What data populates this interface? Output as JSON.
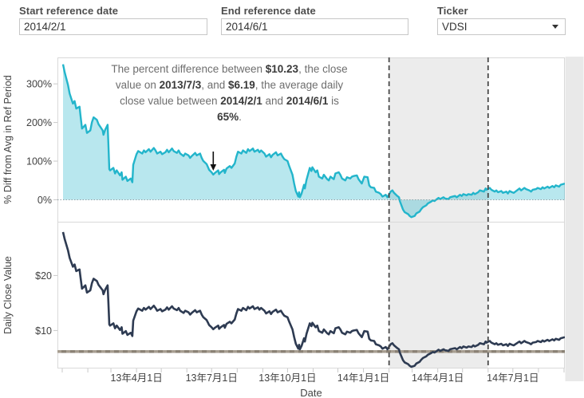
{
  "header": {
    "fields": [
      {
        "label": "Start reference date",
        "value": "2014/2/1",
        "type": "text"
      },
      {
        "label": "End reference date",
        "value": "2014/6/1",
        "type": "text"
      },
      {
        "label": "Ticker",
        "value": "VDSI",
        "type": "dropdown"
      }
    ]
  },
  "annotation": {
    "segments": [
      {
        "text": "The percent difference between ",
        "bold": false
      },
      {
        "text": "$10.23",
        "bold": true
      },
      {
        "text": ", the close value on ",
        "bold": false
      },
      {
        "text": "2013/7/3",
        "bold": true
      },
      {
        "text": ", and ",
        "bold": false
      },
      {
        "text": "$6.19",
        "bold": true
      },
      {
        "text": ", the average daily close value between ",
        "bold": false
      },
      {
        "text": "2014/2/1",
        "bold": true
      },
      {
        "text": " and ",
        "bold": false
      },
      {
        "text": "2014/6/1",
        "bold": true
      },
      {
        "text": " is ",
        "bold": false
      },
      {
        "text": "65%",
        "bold": true
      },
      {
        "text": ".",
        "bold": false
      }
    ],
    "arrow_date": "2013-07-03"
  },
  "chart_data": {
    "type": "line",
    "xlabel": "Date",
    "x_range": [
      "2013-01-01",
      "2014-09-06"
    ],
    "minor_ticks": "monthly",
    "x_tick_labels": [
      {
        "date": "2013-04-01",
        "label": "13年4月1日"
      },
      {
        "date": "2013-07-01",
        "label": "13年7月1日"
      },
      {
        "date": "2013-10-01",
        "label": "13年10月1日"
      },
      {
        "date": "2014-01-01",
        "label": "14年1月1日"
      },
      {
        "date": "2014-04-01",
        "label": "14年4月1日"
      },
      {
        "date": "2014-07-01",
        "label": "14年7月1日"
      }
    ],
    "reference_band": {
      "start": "2014-02-01",
      "end": "2014-06-01",
      "color": "#ececec"
    },
    "dashed_line_color": "#4a4a4a",
    "linked_charts": [
      {
        "id": "pct_diff",
        "ylabel": "% Diff from Avg in Ref Period",
        "yticks": [
          {
            "value": 0,
            "label": "0%"
          },
          {
            "value": 100,
            "label": "100%"
          },
          {
            "value": 200,
            "label": "200%"
          },
          {
            "value": 300,
            "label": "300%"
          }
        ],
        "ylim": [
          -60,
          370
        ],
        "zero_line": true,
        "ref_avg": 6.19,
        "line_color": "#23b5cb",
        "fill_color": "rgba(35,181,203,0.32)",
        "derived": "pct = (close / ref_avg - 1) * 100"
      },
      {
        "id": "daily_close",
        "ylabel": "Daily Close Value",
        "yticks": [
          {
            "value": 10,
            "label": "$10"
          },
          {
            "value": 20,
            "label": "$20"
          }
        ],
        "ylim": [
          2.8,
          29
        ],
        "line_color": "#2e3b52",
        "reference_line_value": 6.19,
        "reference_line_color": "#8b8275"
      }
    ],
    "series": {
      "name": "VDSI daily close",
      "points": [
        [
          "2013-01-02",
          27.9
        ],
        [
          "2013-01-04",
          26.6
        ],
        [
          "2013-01-08",
          24.6
        ],
        [
          "2013-01-10",
          23.2
        ],
        [
          "2013-01-14",
          21.6
        ],
        [
          "2013-01-16",
          22.0
        ],
        [
          "2013-01-18",
          20.8
        ],
        [
          "2013-01-22",
          21.1
        ],
        [
          "2013-01-23",
          19.8
        ],
        [
          "2013-01-25",
          17.6
        ],
        [
          "2013-01-29",
          18.2
        ],
        [
          "2013-01-31",
          16.9
        ],
        [
          "2013-02-04",
          17.3
        ],
        [
          "2013-02-06",
          18.6
        ],
        [
          "2013-02-08",
          19.4
        ],
        [
          "2013-02-12",
          19.0
        ],
        [
          "2013-02-14",
          18.3
        ],
        [
          "2013-02-19",
          17.3
        ],
        [
          "2013-02-20",
          16.6
        ],
        [
          "2013-02-22",
          17.4
        ],
        [
          "2013-02-25",
          18.2
        ],
        [
          "2013-02-26",
          15.0
        ],
        [
          "2013-02-27",
          11.1
        ],
        [
          "2013-02-28",
          10.9
        ],
        [
          "2013-03-04",
          11.3
        ],
        [
          "2013-03-06",
          10.4
        ],
        [
          "2013-03-08",
          10.9
        ],
        [
          "2013-03-12",
          10.1
        ],
        [
          "2013-03-14",
          10.6
        ],
        [
          "2013-03-15",
          9.4
        ],
        [
          "2013-03-19",
          9.9
        ],
        [
          "2013-03-21",
          9.2
        ],
        [
          "2013-03-25",
          9.6
        ],
        [
          "2013-03-27",
          9.0
        ],
        [
          "2013-03-28",
          11.8
        ],
        [
          "2013-04-01",
          13.5
        ],
        [
          "2013-04-03",
          14.0
        ],
        [
          "2013-04-08",
          13.6
        ],
        [
          "2013-04-10",
          14.1
        ],
        [
          "2013-04-12",
          13.8
        ],
        [
          "2013-04-16",
          14.3
        ],
        [
          "2013-04-18",
          13.9
        ],
        [
          "2013-04-22",
          14.5
        ],
        [
          "2013-04-24",
          14.1
        ],
        [
          "2013-04-26",
          13.6
        ],
        [
          "2013-04-30",
          13.9
        ],
        [
          "2013-05-02",
          13.5
        ],
        [
          "2013-05-06",
          13.8
        ],
        [
          "2013-05-08",
          14.2
        ],
        [
          "2013-05-10",
          13.8
        ],
        [
          "2013-05-14",
          14.4
        ],
        [
          "2013-05-16",
          14.0
        ],
        [
          "2013-05-20",
          13.7
        ],
        [
          "2013-05-22",
          14.1
        ],
        [
          "2013-05-24",
          13.6
        ],
        [
          "2013-05-28",
          13.2
        ],
        [
          "2013-05-30",
          13.6
        ],
        [
          "2013-06-03",
          13.3
        ],
        [
          "2013-06-05",
          12.9
        ],
        [
          "2013-06-07",
          13.2
        ],
        [
          "2013-06-11",
          13.7
        ],
        [
          "2013-06-13",
          13.3
        ],
        [
          "2013-06-17",
          13.6
        ],
        [
          "2013-06-19",
          12.9
        ],
        [
          "2013-06-21",
          12.4
        ],
        [
          "2013-06-25",
          11.9
        ],
        [
          "2013-06-27",
          11.3
        ],
        [
          "2013-06-28",
          11.0
        ],
        [
          "2013-07-01",
          10.6
        ],
        [
          "2013-07-03",
          10.23
        ],
        [
          "2013-07-05",
          10.5
        ],
        [
          "2013-07-09",
          10.9
        ],
        [
          "2013-07-10",
          10.3
        ],
        [
          "2013-07-12",
          10.6
        ],
        [
          "2013-07-16",
          11.0
        ],
        [
          "2013-07-17",
          10.5
        ],
        [
          "2013-07-19",
          11.2
        ],
        [
          "2013-07-23",
          11.6
        ],
        [
          "2013-07-25",
          11.3
        ],
        [
          "2013-07-29",
          12.0
        ],
        [
          "2013-07-31",
          13.1
        ],
        [
          "2013-08-02",
          13.9
        ],
        [
          "2013-08-06",
          13.6
        ],
        [
          "2013-08-08",
          14.1
        ],
        [
          "2013-08-12",
          13.7
        ],
        [
          "2013-08-14",
          14.3
        ],
        [
          "2013-08-16",
          14.0
        ],
        [
          "2013-08-20",
          14.4
        ],
        [
          "2013-08-22",
          13.9
        ],
        [
          "2013-08-26",
          14.2
        ],
        [
          "2013-08-28",
          13.8
        ],
        [
          "2013-08-30",
          14.1
        ],
        [
          "2013-09-03",
          13.6
        ],
        [
          "2013-09-05",
          13.1
        ],
        [
          "2013-09-09",
          13.5
        ],
        [
          "2013-09-11",
          13.0
        ],
        [
          "2013-09-13",
          13.4
        ],
        [
          "2013-09-17",
          13.8
        ],
        [
          "2013-09-19",
          13.3
        ],
        [
          "2013-09-23",
          13.6
        ],
        [
          "2013-09-25",
          13.1
        ],
        [
          "2013-09-27",
          12.7
        ],
        [
          "2013-10-01",
          12.4
        ],
        [
          "2013-10-03",
          11.6
        ],
        [
          "2013-10-07",
          10.2
        ],
        [
          "2013-10-09",
          8.8
        ],
        [
          "2013-10-11",
          7.6
        ],
        [
          "2013-10-14",
          6.7
        ],
        [
          "2013-10-15",
          7.4
        ],
        [
          "2013-10-16",
          6.6
        ],
        [
          "2013-10-18",
          7.2
        ],
        [
          "2013-10-21",
          8.6
        ],
        [
          "2013-10-22",
          8.0
        ],
        [
          "2013-10-24",
          9.4
        ],
        [
          "2013-10-28",
          11.3
        ],
        [
          "2013-10-30",
          10.8
        ],
        [
          "2013-10-31",
          11.4
        ],
        [
          "2013-11-04",
          10.6
        ],
        [
          "2013-11-06",
          10.9
        ],
        [
          "2013-11-08",
          9.9
        ],
        [
          "2013-11-12",
          9.6
        ],
        [
          "2013-11-14",
          10.2
        ],
        [
          "2013-11-18",
          9.5
        ],
        [
          "2013-11-20",
          9.3
        ],
        [
          "2013-11-22",
          9.9
        ],
        [
          "2013-11-26",
          9.5
        ],
        [
          "2013-11-28",
          10.4
        ],
        [
          "2013-12-02",
          10.6
        ],
        [
          "2013-12-04",
          10.2
        ],
        [
          "2013-12-06",
          9.6
        ],
        [
          "2013-12-10",
          9.3
        ],
        [
          "2013-12-12",
          9.8
        ],
        [
          "2013-12-16",
          9.6
        ],
        [
          "2013-12-18",
          9.9
        ],
        [
          "2013-12-20",
          10.0
        ],
        [
          "2013-12-24",
          10.1
        ],
        [
          "2013-12-26",
          9.5
        ],
        [
          "2013-12-30",
          8.8
        ],
        [
          "2014-01-02",
          9.9
        ],
        [
          "2014-01-06",
          9.8
        ],
        [
          "2014-01-08",
          8.5
        ],
        [
          "2014-01-10",
          8.2
        ],
        [
          "2014-01-14",
          8.1
        ],
        [
          "2014-01-16",
          7.5
        ],
        [
          "2014-01-20",
          7.3
        ],
        [
          "2014-01-22",
          7.1
        ],
        [
          "2014-01-24",
          6.7
        ],
        [
          "2014-01-28",
          7.0
        ],
        [
          "2014-01-30",
          6.6
        ],
        [
          "2014-02-03",
          7.5
        ],
        [
          "2014-02-05",
          7.7
        ],
        [
          "2014-02-07",
          7.3
        ],
        [
          "2014-02-11",
          6.8
        ],
        [
          "2014-02-13",
          6.6
        ],
        [
          "2014-02-14",
          6.0
        ],
        [
          "2014-02-18",
          4.6
        ],
        [
          "2014-02-20",
          4.2
        ],
        [
          "2014-02-24",
          3.9
        ],
        [
          "2014-02-26",
          3.6
        ],
        [
          "2014-02-28",
          3.4
        ],
        [
          "2014-03-04",
          3.6
        ],
        [
          "2014-03-06",
          4.0
        ],
        [
          "2014-03-10",
          4.3
        ],
        [
          "2014-03-12",
          4.7
        ],
        [
          "2014-03-14",
          5.0
        ],
        [
          "2014-03-18",
          5.3
        ],
        [
          "2014-03-20",
          5.6
        ],
        [
          "2014-03-24",
          5.9
        ],
        [
          "2014-03-26",
          6.1
        ],
        [
          "2014-03-28",
          6.0
        ],
        [
          "2014-03-31",
          6.3
        ],
        [
          "2014-04-02",
          6.5
        ],
        [
          "2014-04-04",
          6.3
        ],
        [
          "2014-04-08",
          6.6
        ],
        [
          "2014-04-10",
          6.4
        ],
        [
          "2014-04-14",
          6.3
        ],
        [
          "2014-04-16",
          6.6
        ],
        [
          "2014-04-22",
          6.8
        ],
        [
          "2014-04-24",
          6.6
        ],
        [
          "2014-04-28",
          7.0
        ],
        [
          "2014-04-30",
          6.8
        ],
        [
          "2014-05-02",
          7.1
        ],
        [
          "2014-05-06",
          6.9
        ],
        [
          "2014-05-08",
          7.1
        ],
        [
          "2014-05-12",
          7.0
        ],
        [
          "2014-05-14",
          7.3
        ],
        [
          "2014-05-16",
          7.1
        ],
        [
          "2014-05-20",
          7.4
        ],
        [
          "2014-05-22",
          7.7
        ],
        [
          "2014-05-27",
          7.5
        ],
        [
          "2014-05-29",
          8.0
        ],
        [
          "2014-05-30",
          7.8
        ],
        [
          "2014-06-03",
          8.1
        ],
        [
          "2014-06-05",
          7.8
        ],
        [
          "2014-06-09",
          7.5
        ],
        [
          "2014-06-11",
          7.7
        ],
        [
          "2014-06-13",
          7.4
        ],
        [
          "2014-06-17",
          7.6
        ],
        [
          "2014-06-19",
          7.3
        ],
        [
          "2014-06-23",
          7.5
        ],
        [
          "2014-06-25",
          7.2
        ],
        [
          "2014-06-27",
          7.6
        ],
        [
          "2014-06-30",
          7.4
        ],
        [
          "2014-07-02",
          7.3
        ],
        [
          "2014-07-07",
          7.8
        ],
        [
          "2014-07-09",
          8.0
        ],
        [
          "2014-07-11",
          7.7
        ],
        [
          "2014-07-15",
          8.1
        ],
        [
          "2014-07-17",
          7.9
        ],
        [
          "2014-07-21",
          7.7
        ],
        [
          "2014-07-23",
          7.5
        ],
        [
          "2014-07-25",
          7.8
        ],
        [
          "2014-07-29",
          7.9
        ],
        [
          "2014-07-31",
          8.1
        ],
        [
          "2014-08-04",
          7.9
        ],
        [
          "2014-08-06",
          8.2
        ],
        [
          "2014-08-08",
          8.0
        ],
        [
          "2014-08-12",
          8.3
        ],
        [
          "2014-08-14",
          8.1
        ],
        [
          "2014-08-18",
          8.4
        ],
        [
          "2014-08-20",
          8.2
        ],
        [
          "2014-08-22",
          8.5
        ],
        [
          "2014-08-26",
          8.3
        ],
        [
          "2014-08-28",
          8.6
        ],
        [
          "2014-09-02",
          8.8
        ]
      ]
    }
  }
}
